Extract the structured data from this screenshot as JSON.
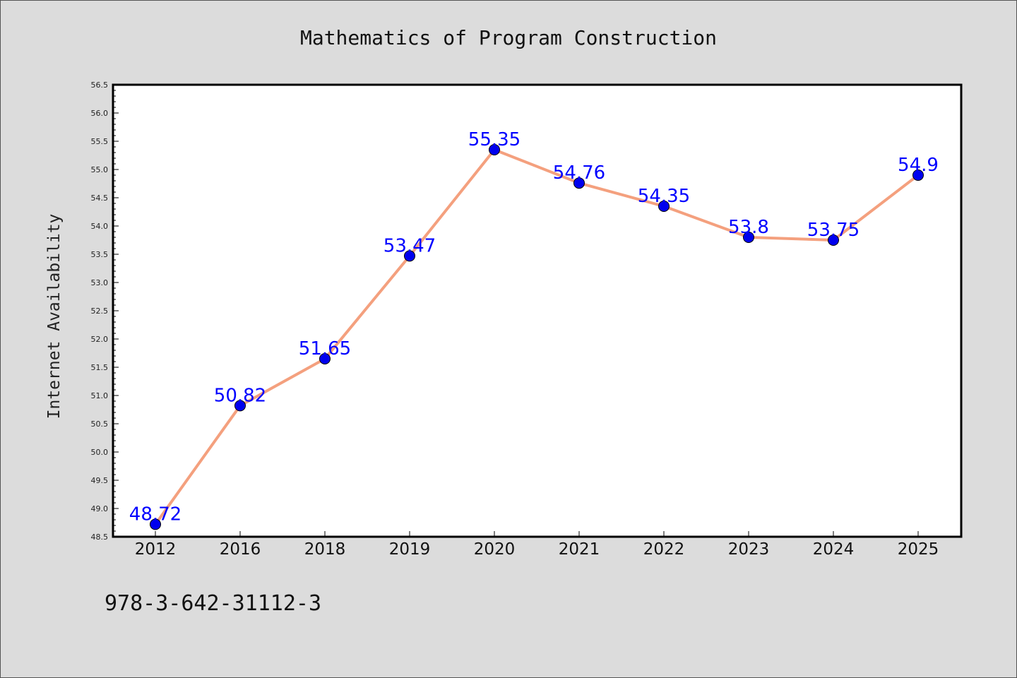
{
  "chart_data": {
    "type": "line",
    "title": "Mathematics of Program Construction",
    "xlabel": "",
    "ylabel": "Internet Availability",
    "categories": [
      "2012",
      "2016",
      "2018",
      "2019",
      "2020",
      "2021",
      "2022",
      "2023",
      "2024",
      "2025"
    ],
    "series": [
      {
        "values": [
          48.72,
          50.82,
          51.65,
          53.47,
          55.35,
          54.76,
          54.35,
          53.8,
          53.75,
          54.9
        ],
        "data_labels": [
          "48.72",
          "50.82",
          "51.65",
          "53.47",
          "55.35",
          "54.76",
          "54.35",
          "53.8",
          "53.75",
          "54.9"
        ],
        "line_color": "#f4a07e",
        "marker_color": "#0000ee"
      }
    ],
    "ylim": [
      48.5,
      56.5
    ],
    "yticks": [
      "48.5",
      "49.0",
      "49.5",
      "50.0",
      "50.5",
      "51.0",
      "51.5",
      "52.0",
      "52.5",
      "53.0",
      "53.5",
      "54.0",
      "54.5",
      "55.0",
      "55.5",
      "56.0",
      "56.5"
    ],
    "grid": false,
    "legend": "none",
    "label_color": "#0000ff"
  },
  "footer": {
    "isbn": "978-3-642-31112-3"
  }
}
